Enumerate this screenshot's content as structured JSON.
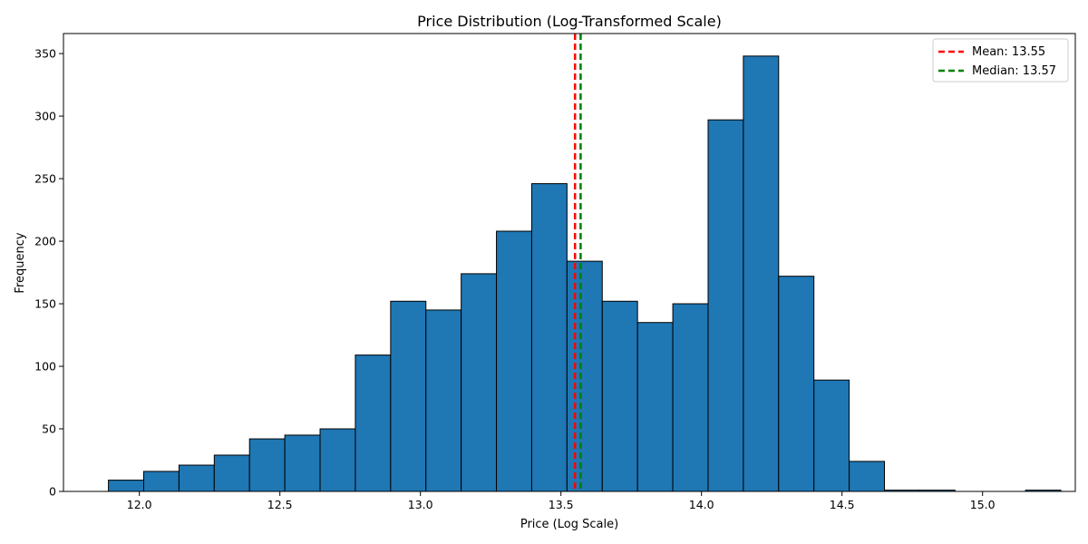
{
  "chart_data": {
    "type": "bar",
    "title": "Price Distribution (Log-Transformed Scale)",
    "xlabel": "Price (Log Scale)",
    "ylabel": "Frequency",
    "xlim": [
      11.73,
      15.33
    ],
    "ylim": [
      0,
      366
    ],
    "x_ticks": [
      12.0,
      12.5,
      13.0,
      13.5,
      14.0,
      14.5,
      15.0
    ],
    "x_tick_labels": [
      "12.0",
      "12.5",
      "13.0",
      "13.5",
      "14.0",
      "14.5",
      "15.0"
    ],
    "y_ticks": [
      0,
      50,
      100,
      150,
      200,
      250,
      300,
      350
    ],
    "y_tick_labels": [
      "0",
      "50",
      "100",
      "150",
      "200",
      "250",
      "300",
      "350"
    ],
    "bin_start": 11.89,
    "bin_width": 0.1255,
    "values": [
      9,
      16,
      21,
      29,
      42,
      45,
      50,
      109,
      152,
      145,
      174,
      208,
      246,
      184,
      152,
      135,
      150,
      297,
      348,
      172,
      89,
      24,
      1,
      1,
      0,
      0,
      1
    ],
    "bar_color": "#1f77b4",
    "edge_color": "#000000",
    "reference_lines": [
      {
        "label": "Mean: 13.55",
        "value": 13.55,
        "color": "#ff0000",
        "style": "dashed"
      },
      {
        "label": "Median: 13.57",
        "value": 13.57,
        "color": "#008000",
        "style": "dashed"
      }
    ],
    "legend_position": "top-right",
    "grid": false
  }
}
